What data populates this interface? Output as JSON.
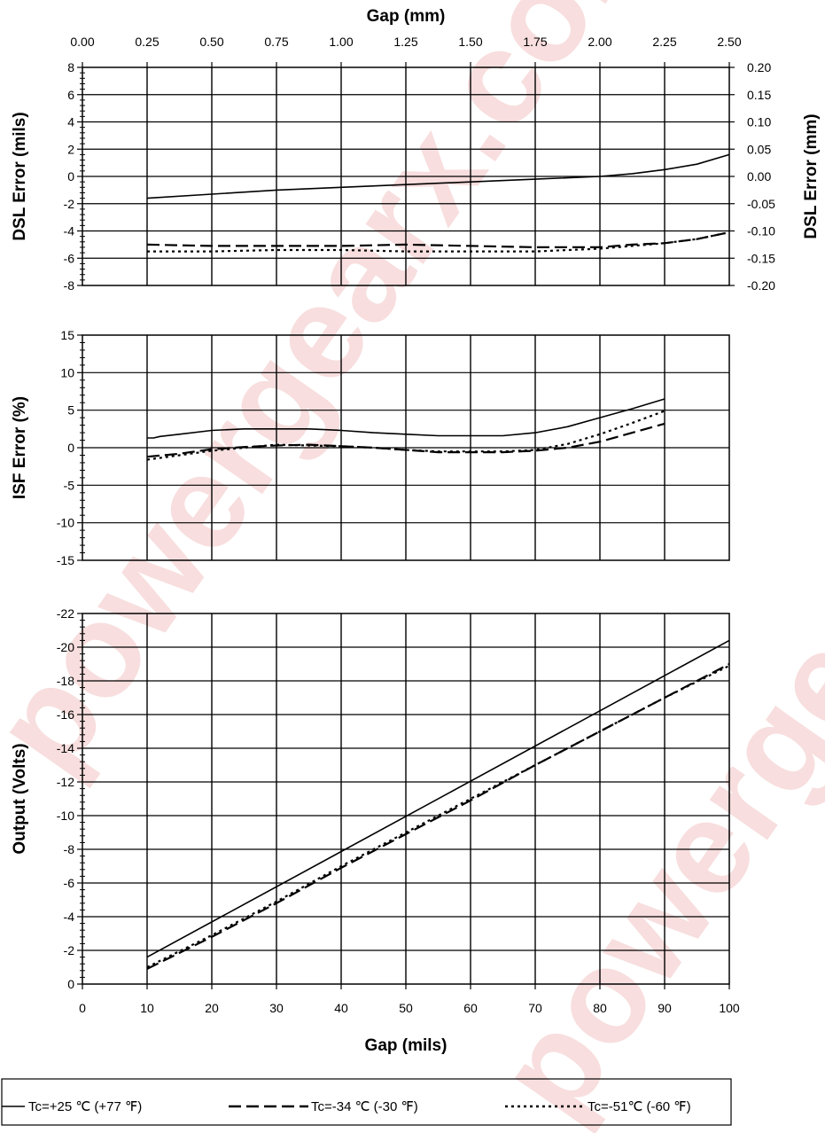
{
  "watermark": "powergearx.com",
  "watermark_bottom": "powergearx",
  "colors": {
    "line": "#000000",
    "grid": "#000000",
    "watermark": "#f0b8b8"
  },
  "chart_data": [
    {
      "type": "line",
      "name": "dsl-error",
      "xlabel_top": "Gap (mm)",
      "top_ticks": [
        "0.00",
        "0.25",
        "0.50",
        "0.75",
        "1.00",
        "1.25",
        "1.50",
        "1.75",
        "2.00",
        "2.25",
        "2.50"
      ],
      "ylabel": "DSL Error (mils)",
      "ylabel_right": "DSL Error (mm)",
      "yticks": [
        "8",
        "6",
        "4",
        "2",
        "0",
        "-2",
        "-4",
        "-6",
        "-8"
      ],
      "yticks_right": [
        "0.20",
        "0.15",
        "0.10",
        "0.05",
        "0.00",
        "-0.05",
        "-0.10",
        "-0.15",
        "-0.20"
      ],
      "xlim": [
        0,
        100
      ],
      "ylim": [
        -8,
        8
      ],
      "grid": true,
      "series": [
        {
          "name": "Tc=+25 ℃ (+77 ℉)",
          "style": "solid",
          "x": [
            10,
            20,
            30,
            40,
            50,
            60,
            70,
            80,
            85,
            90,
            95,
            100
          ],
          "y": [
            -1.6,
            -1.3,
            -1.0,
            -0.8,
            -0.6,
            -0.4,
            -0.2,
            0.0,
            0.2,
            0.5,
            0.9,
            1.6
          ]
        },
        {
          "name": "Tc=-34 ℃ (-30 ℉)",
          "style": "dash",
          "x": [
            10,
            20,
            30,
            40,
            50,
            60,
            70,
            80,
            85,
            90,
            95,
            100
          ],
          "y": [
            -5.0,
            -5.1,
            -5.1,
            -5.1,
            -5.0,
            -5.1,
            -5.2,
            -5.2,
            -5.0,
            -4.9,
            -4.6,
            -4.1
          ]
        },
        {
          "name": "Tc=-51℃ (-60 ℉)",
          "style": "dot",
          "x": [
            10,
            20,
            30,
            40,
            50,
            60,
            70,
            80,
            85,
            90,
            95,
            100
          ],
          "y": [
            -5.5,
            -5.5,
            -5.4,
            -5.4,
            -5.5,
            -5.5,
            -5.5,
            -5.3,
            -5.1,
            -4.9,
            -4.6,
            -4.1
          ]
        }
      ]
    },
    {
      "type": "line",
      "name": "isf-error",
      "ylabel": "ISF Error (%)",
      "yticks": [
        "15",
        "10",
        "5",
        "0",
        "-5",
        "-10",
        "-15"
      ],
      "xlim": [
        0,
        100
      ],
      "ylim": [
        -15,
        15
      ],
      "grid": true,
      "series": [
        {
          "name": "Tc=+25 ℃ (+77 ℉)",
          "style": "solid",
          "x": [
            10,
            11,
            12,
            15,
            20,
            25,
            30,
            35,
            40,
            45,
            50,
            55,
            60,
            65,
            70,
            75,
            80,
            85,
            90
          ],
          "y": [
            1.3,
            1.3,
            1.5,
            1.8,
            2.3,
            2.5,
            2.5,
            2.5,
            2.3,
            2.0,
            1.8,
            1.6,
            1.6,
            1.6,
            2.0,
            2.8,
            4.0,
            5.2,
            6.5
          ]
        },
        {
          "name": "Tc=-34 ℃ (-30 ℉)",
          "style": "dash",
          "x": [
            10,
            15,
            20,
            25,
            30,
            35,
            40,
            45,
            50,
            55,
            60,
            65,
            70,
            75,
            80,
            85,
            90
          ],
          "y": [
            -1.2,
            -0.8,
            -0.2,
            0.1,
            0.3,
            0.4,
            0.2,
            0.0,
            -0.3,
            -0.6,
            -0.6,
            -0.6,
            -0.4,
            0.0,
            0.8,
            2.0,
            3.2
          ]
        },
        {
          "name": "Tc=-51℃ (-60 ℉)",
          "style": "dot",
          "x": [
            10,
            15,
            20,
            25,
            30,
            35,
            40,
            45,
            50,
            55,
            60,
            65,
            70,
            75,
            80,
            85,
            90
          ],
          "y": [
            -1.6,
            -1.0,
            -0.4,
            0.0,
            0.4,
            0.3,
            0.2,
            0.0,
            -0.3,
            -0.5,
            -0.5,
            -0.5,
            -0.3,
            0.5,
            1.8,
            3.3,
            4.9
          ]
        }
      ]
    },
    {
      "type": "line",
      "name": "output",
      "ylabel": "Output (Volts)",
      "xlabel": "Gap (mils)",
      "xticks": [
        "0",
        "10",
        "20",
        "30",
        "40",
        "50",
        "60",
        "70",
        "80",
        "90",
        "100"
      ],
      "yticks": [
        "-22",
        "-20",
        "-18",
        "-16",
        "-14",
        "-12",
        "-10",
        "-8",
        "-6",
        "-4",
        "-2",
        "0"
      ],
      "xlim": [
        0,
        100
      ],
      "ylim": [
        0,
        -22
      ],
      "grid": true,
      "series": [
        {
          "name": "Tc=+25 ℃ (+77 ℉)",
          "style": "solid",
          "x": [
            10,
            100
          ],
          "y": [
            -1.6,
            -20.4
          ]
        },
        {
          "name": "Tc=-34 ℃ (-30 ℉)",
          "style": "dash",
          "x": [
            10,
            20,
            30,
            40,
            50,
            60,
            70,
            80,
            90,
            100
          ],
          "y": [
            -0.9,
            -2.8,
            -4.8,
            -6.9,
            -8.9,
            -10.9,
            -13.0,
            -15.0,
            -17.0,
            -19.0
          ]
        },
        {
          "name": "Tc=-51℃ (-60 ℉)",
          "style": "dot",
          "x": [
            10,
            20,
            30,
            40,
            50,
            60,
            70,
            80,
            90,
            100
          ],
          "y": [
            -1.0,
            -2.9,
            -4.9,
            -7.0,
            -9.0,
            -11.0,
            -13.0,
            -15.0,
            -17.0,
            -18.9
          ]
        }
      ]
    }
  ],
  "legend": [
    {
      "label": "Tc=+25 ℃ (+77 ℉)",
      "style": "solid"
    },
    {
      "label": "Tc=-34 ℃ (-30 ℉)",
      "style": "dash"
    },
    {
      "label": "Tc=-51℃ (-60 ℉)",
      "style": "dot"
    }
  ]
}
